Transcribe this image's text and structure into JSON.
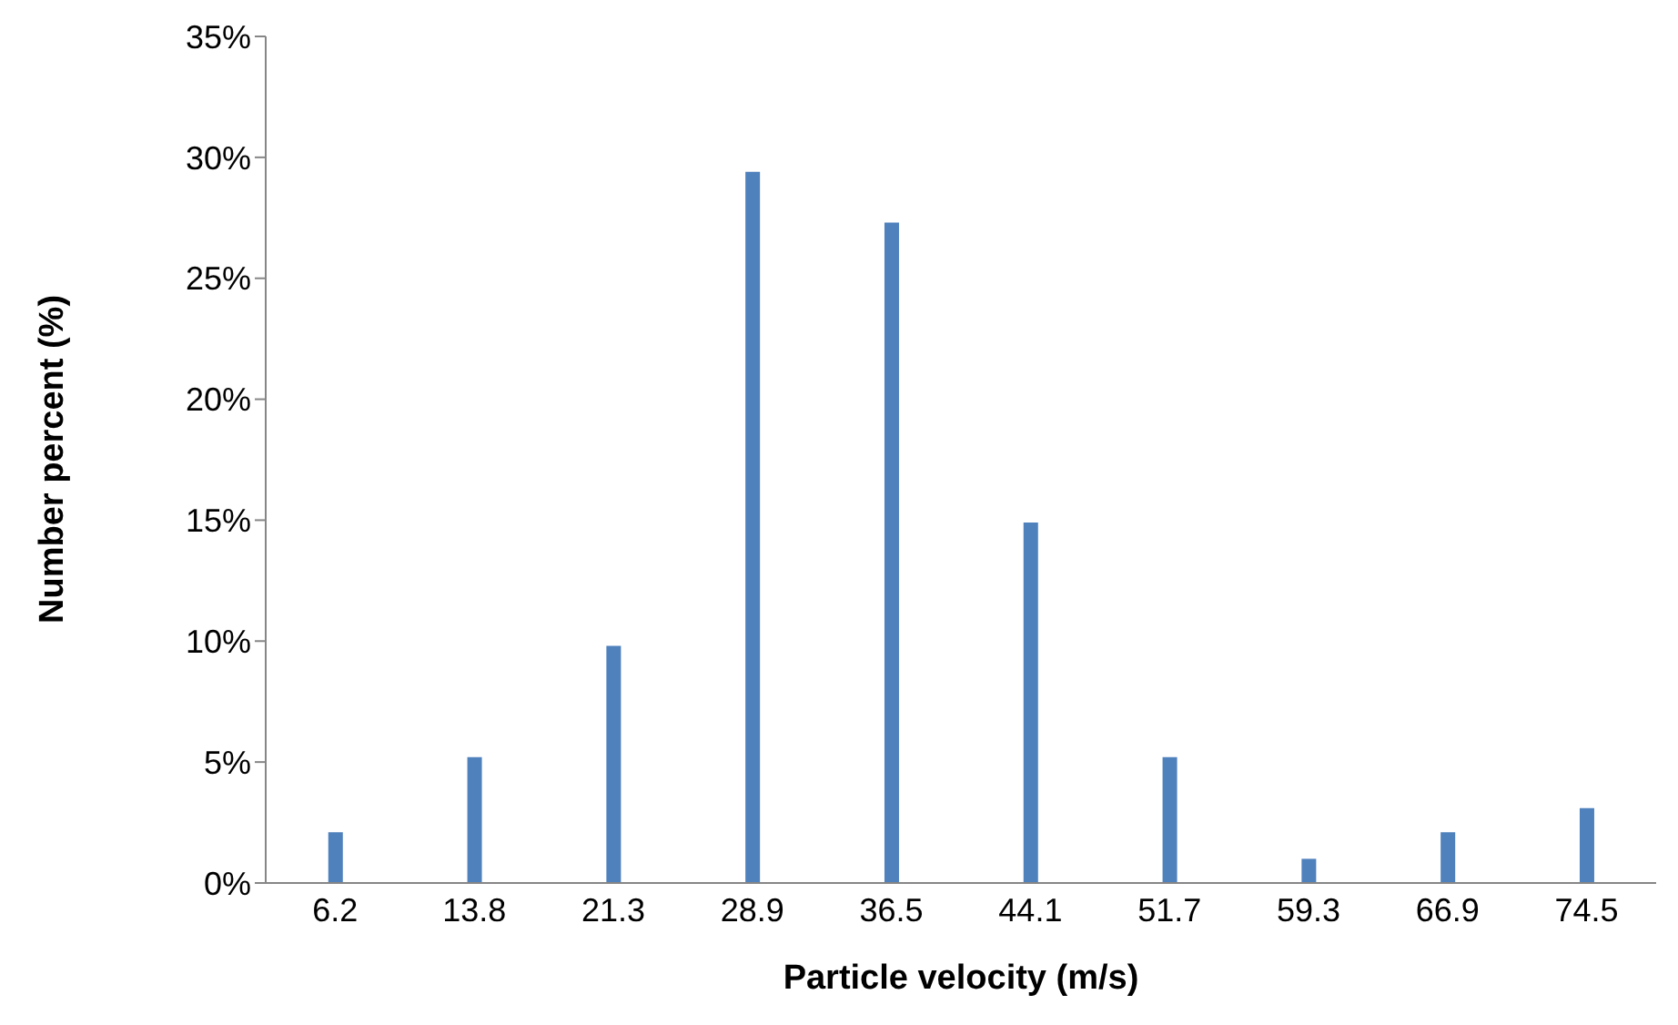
{
  "chart_data": {
    "type": "bar",
    "xlabel": "Particle velocity (m/s)",
    "ylabel": "Number percent (%)",
    "categories": [
      "6.2",
      "13.8",
      "21.3",
      "28.9",
      "36.5",
      "44.1",
      "51.7",
      "59.3",
      "66.9",
      "74.5"
    ],
    "values": [
      2.1,
      5.2,
      9.8,
      29.4,
      27.3,
      14.9,
      5.2,
      1.0,
      2.1,
      3.1
    ],
    "color": "#4f81bd",
    "ylim": [
      0,
      35
    ],
    "yticks": [
      {
        "value": 0,
        "label": "0%"
      },
      {
        "value": 5,
        "label": "5%"
      },
      {
        "value": 10,
        "label": "10%"
      },
      {
        "value": 15,
        "label": "15%"
      },
      {
        "value": 20,
        "label": "20%"
      },
      {
        "value": 25,
        "label": "25%"
      },
      {
        "value": 30,
        "label": "30%"
      },
      {
        "value": 35,
        "label": "35%"
      }
    ],
    "grid": false,
    "legend": false
  }
}
